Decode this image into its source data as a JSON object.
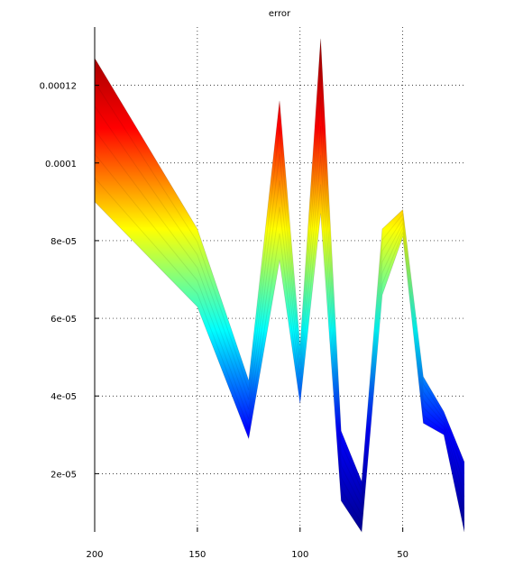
{
  "chart_data": {
    "type": "area",
    "title": "error",
    "xlabel": "",
    "ylabel": "",
    "x_reversed": true,
    "xlim": [
      200,
      20
    ],
    "ylim": [
      5e-06,
      0.000135
    ],
    "grid": true,
    "x_ticks": [
      200,
      150,
      100,
      50
    ],
    "x_tick_labels": [
      "200",
      "150",
      "100",
      "50"
    ],
    "y_ticks": [
      2e-05,
      4e-05,
      6e-05,
      8e-05,
      0.0001,
      0.00012
    ],
    "y_tick_labels": [
      "2e-05",
      "4e-05",
      "6e-05",
      "8e-05",
      "0.0001",
      "0.00012"
    ],
    "colormap": [
      "#00008f",
      "#0000ff",
      "#00ffff",
      "#ffff00",
      "#ff0000",
      "#800000"
    ],
    "surface": {
      "x": [
        200,
        150,
        125,
        110,
        100,
        90,
        80,
        70,
        60,
        50,
        40,
        30,
        20
      ],
      "top": [
        0.000127,
        8.3e-05,
        4.4e-05,
        0.000116,
        5.3e-05,
        0.000132,
        3.1e-05,
        1.8e-05,
        8.3e-05,
        8.8e-05,
        4.5e-05,
        3.6e-05,
        2.3e-05
      ],
      "bottom": [
        9e-05,
        6.3e-05,
        2.9e-05,
        7.5e-05,
        3.8e-05,
        8.7e-05,
        1.3e-05,
        5e-06,
        6.6e-05,
        8.1e-05,
        3.3e-05,
        3e-05,
        5e-06
      ]
    }
  }
}
